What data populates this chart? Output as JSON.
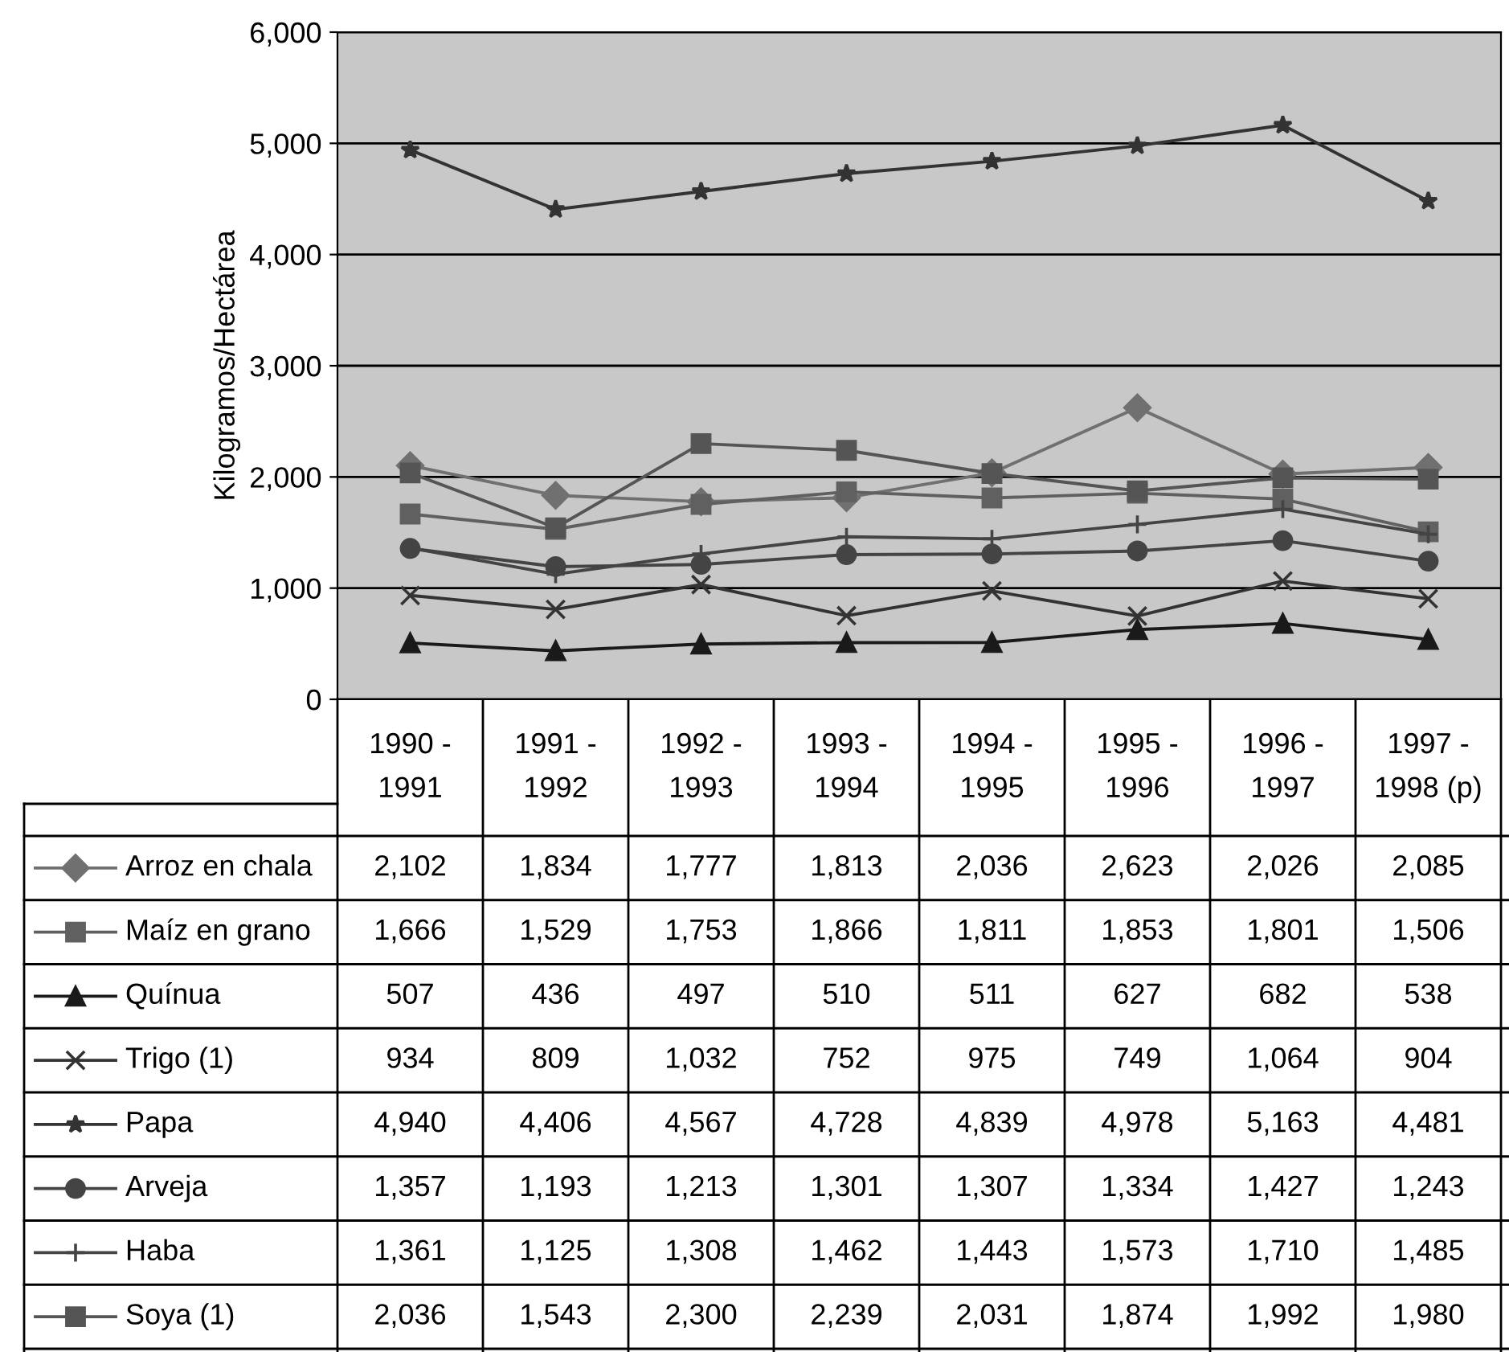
{
  "chart_data": {
    "type": "line",
    "ylabel": "Kilogramos/Hectárea",
    "categories": [
      "1990 -\n1991",
      "1991 -\n1992",
      "1992 -\n1993",
      "1993 -\n1994",
      "1994 -\n1995",
      "1995 -\n1996",
      "1996 -\n1997",
      "1997 -\n1998 (p)"
    ],
    "ylim": [
      0,
      6000
    ],
    "yticks": [
      0,
      {
        "value": 1000,
        "label": "1,000"
      },
      {
        "value": 2000,
        "label": "2,000"
      },
      {
        "value": 3000,
        "label": "3,000"
      },
      {
        "value": 4000,
        "label": "4,000"
      },
      {
        "value": 5000,
        "label": "5,000"
      },
      {
        "value": 6000,
        "label": "6,000"
      }
    ],
    "grid": "y",
    "legend": "bottom",
    "tick_labels": "y",
    "series": [
      {
        "name": "Arroz en chala",
        "color": "#707070",
        "marker": "diamond",
        "values": [
          2102,
          1834,
          1777,
          1813,
          2036,
          2623,
          2026,
          2085
        ],
        "value_labels": [
          "2,102",
          "1,834",
          "1,777",
          "1,813",
          "2,036",
          "2,623",
          "2,026",
          "2,085"
        ]
      },
      {
        "name": "Maíz en grano",
        "color": "#606060",
        "marker": "square",
        "values": [
          1666,
          1529,
          1753,
          1866,
          1811,
          1853,
          1801,
          1506
        ],
        "value_labels": [
          "1,666",
          "1,529",
          "1,753",
          "1,866",
          "1,811",
          "1,853",
          "1,801",
          "1,506"
        ]
      },
      {
        "name": "Quínua",
        "color": "#1a1a1a",
        "marker": "triangle",
        "values": [
          507,
          436,
          497,
          510,
          511,
          627,
          682,
          538
        ],
        "value_labels": [
          "507",
          "436",
          "497",
          "510",
          "511",
          "627",
          "682",
          "538"
        ]
      },
      {
        "name": "Trigo (1)",
        "color": "#333333",
        "marker": "cross",
        "values": [
          934,
          809,
          1032,
          752,
          975,
          749,
          1064,
          904
        ],
        "value_labels": [
          "934",
          "809",
          "1,032",
          "752",
          "975",
          "749",
          "1,064",
          "904"
        ]
      },
      {
        "name": "Papa",
        "color": "#333333",
        "marker": "star",
        "values": [
          4940,
          4406,
          4567,
          4728,
          4839,
          4978,
          5163,
          4481
        ],
        "value_labels": [
          "4,940",
          "4,406",
          "4,567",
          "4,728",
          "4,839",
          "4,978",
          "5,163",
          "4,481"
        ]
      },
      {
        "name": "Arveja",
        "color": "#444444",
        "marker": "circle",
        "values": [
          1357,
          1193,
          1213,
          1301,
          1307,
          1334,
          1427,
          1243
        ],
        "value_labels": [
          "1,357",
          "1,193",
          "1,213",
          "1,301",
          "1,307",
          "1,334",
          "1,427",
          "1,243"
        ]
      },
      {
        "name": "Haba",
        "color": "#444444",
        "marker": "plus",
        "values": [
          1361,
          1125,
          1308,
          1462,
          1443,
          1573,
          1710,
          1485
        ],
        "value_labels": [
          "1,361",
          "1,125",
          "1,308",
          "1,462",
          "1,443",
          "1,573",
          "1,710",
          "1,485"
        ]
      },
      {
        "name": "Soya (1)",
        "color": "#555555",
        "marker": "square",
        "values": [
          2036,
          1543,
          2300,
          2239,
          2031,
          1874,
          1992,
          1980
        ],
        "value_labels": [
          "2,036",
          "1,543",
          "2,300",
          "2,239",
          "2,031",
          "1,874",
          "1,992",
          "1,980"
        ]
      }
    ]
  }
}
